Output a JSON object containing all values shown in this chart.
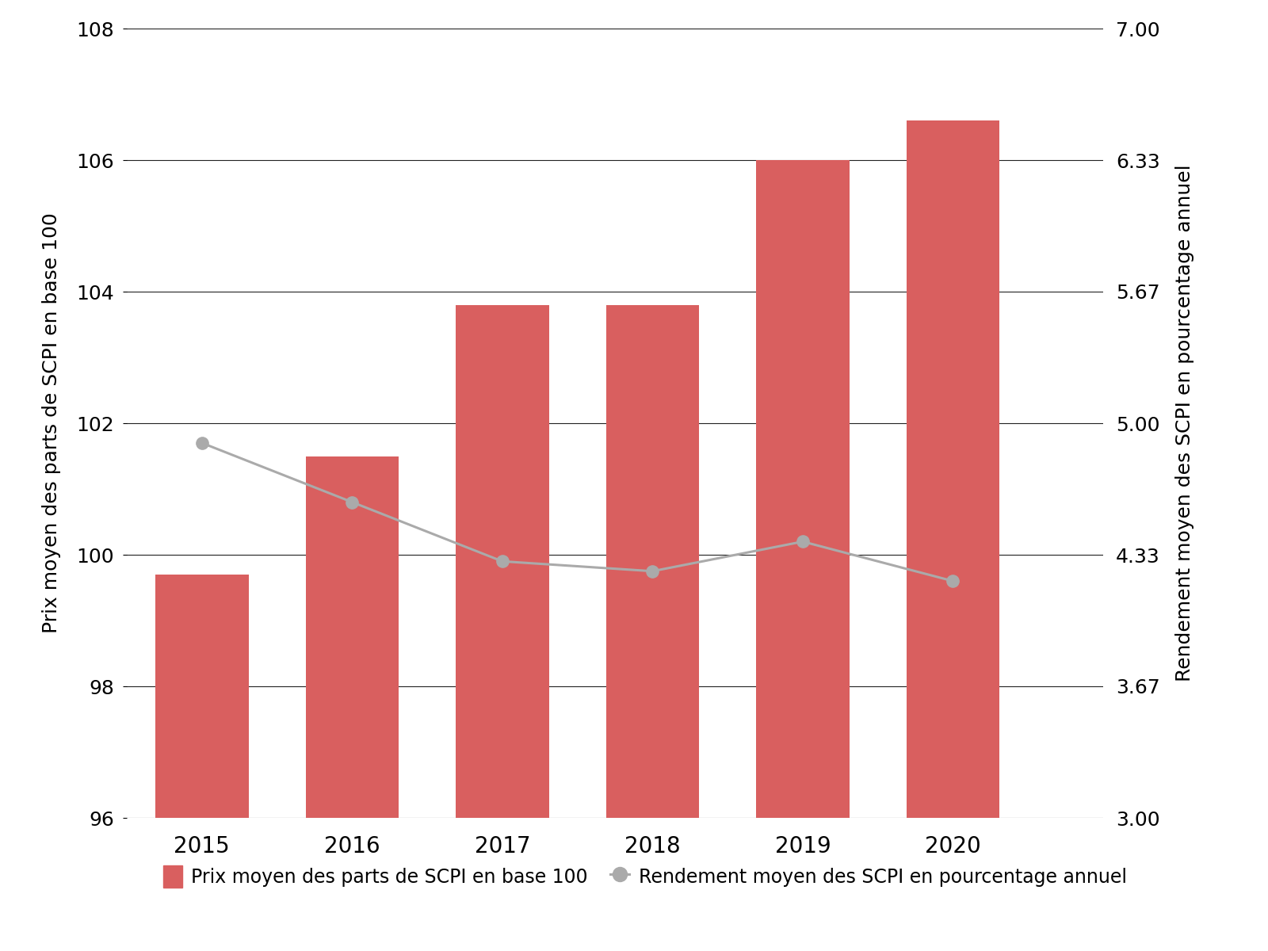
{
  "years": [
    2015,
    2016,
    2017,
    2018,
    2019,
    2020
  ],
  "bar_values": [
    99.7,
    101.5,
    103.8,
    103.8,
    106.0,
    106.6
  ],
  "line_values": [
    4.9,
    4.6,
    4.3,
    4.25,
    4.4,
    4.2
  ],
  "bar_color": "#d95f5f",
  "line_color": "#aaaaaa",
  "left_ylim": [
    96,
    108
  ],
  "right_ylim": [
    3,
    7
  ],
  "left_yticks": [
    96,
    98,
    100,
    102,
    104,
    106,
    108
  ],
  "right_yticks": [
    3,
    3.67,
    4.33,
    5,
    5.67,
    6.33,
    7
  ],
  "left_ylabel": "Prix moyen des parts de SCPI en base 100",
  "right_ylabel": "Rendement moyen des SCPI en pourcentage annuel",
  "legend_bar_label": "Prix moyen des parts de SCPI en base 100",
  "legend_line_label": "Rendement moyen des SCPI en pourcentage annuel",
  "background_color": "#ffffff",
  "grid_color": "#222222",
  "tick_fontsize": 18,
  "ylabel_fontsize": 18,
  "legend_fontsize": 17,
  "xtick_fontsize": 20,
  "bar_bottom": 96,
  "bar_width": 0.62,
  "xlim": [
    2014.5,
    2021.0
  ]
}
